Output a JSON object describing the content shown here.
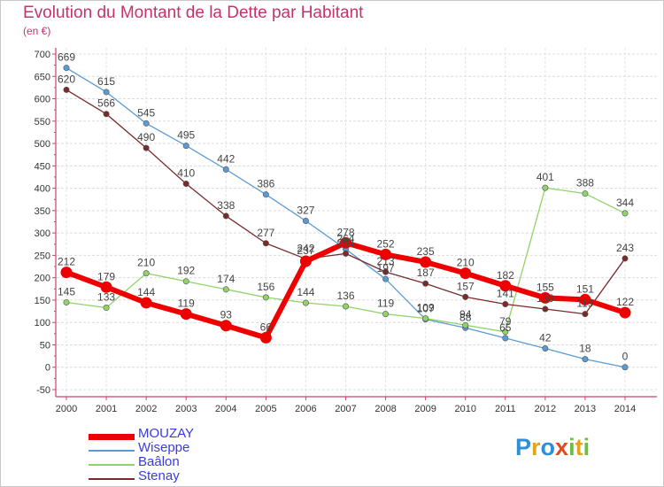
{
  "title": "Evolution du Montant de la Dette par Habitant",
  "subtitle": "(en €)",
  "brand": {
    "text": [
      "P",
      "r",
      "o",
      "x",
      "i",
      "t",
      "i"
    ],
    "colors": [
      "#2e8fd6",
      "#e5a31b",
      "#2e8fd6",
      "#e24b1e",
      "#6bbd45",
      "#e5a31b",
      "#6bbd45"
    ]
  },
  "chart_data": {
    "type": "line",
    "x": [
      "2000",
      "2001",
      "2002",
      "2003",
      "2004",
      "2005",
      "2006",
      "2007",
      "2008",
      "2009",
      "2010",
      "2011",
      "2012",
      "2013",
      "2014"
    ],
    "ylim": [
      -50,
      700
    ],
    "yticks": [
      -50,
      0,
      50,
      100,
      150,
      200,
      250,
      300,
      350,
      400,
      450,
      500,
      550,
      600,
      650,
      700
    ],
    "legend_position": "bottom-left",
    "series": [
      {
        "name": "MOUZAY",
        "color": "#ee0000",
        "values": [
          212,
          179,
          144,
          119,
          93,
          66,
          237,
          278,
          252,
          235,
          210,
          182,
          155,
          151,
          122
        ]
      },
      {
        "name": "Wiseppe",
        "color": "#5b9bd5",
        "values": [
          669,
          615,
          545,
          495,
          442,
          386,
          327,
          264,
          197,
          107,
          88,
          65,
          42,
          18,
          0
        ]
      },
      {
        "name": "Baâlon",
        "color": "#8fd36a",
        "values": [
          145,
          133,
          210,
          192,
          174,
          156,
          144,
          136,
          119,
          109,
          94,
          79,
          401,
          388,
          344
        ]
      },
      {
        "name": "Stenay",
        "color": "#7a2a2a",
        "values": [
          620,
          566,
          490,
          410,
          338,
          277,
          242,
          254,
          213,
          187,
          157,
          141,
          130,
          119,
          243
        ]
      }
    ]
  }
}
